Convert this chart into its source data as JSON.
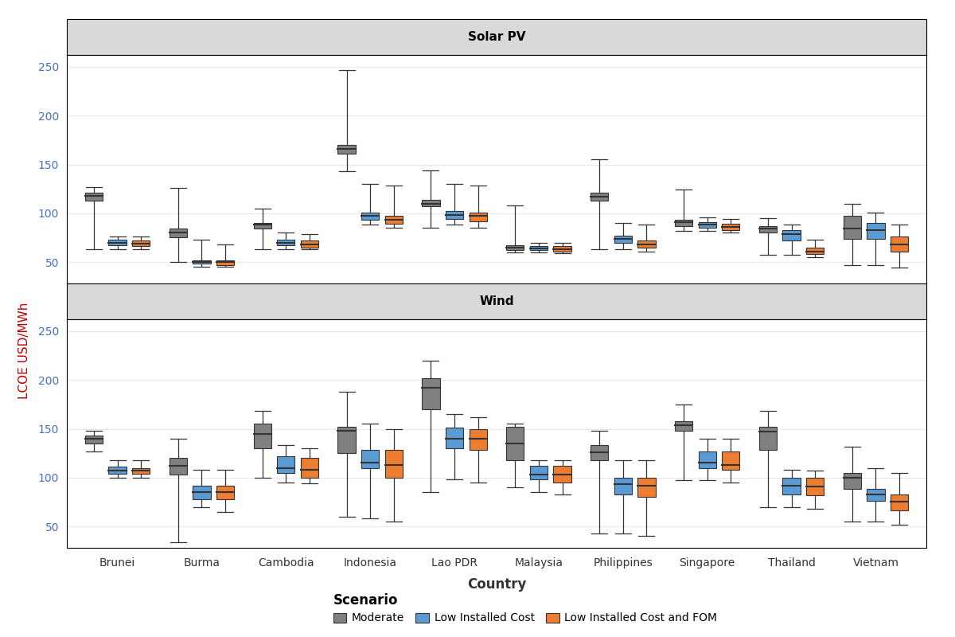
{
  "countries": [
    "Brunei",
    "Burma",
    "Cambodia",
    "Indonesia",
    "Lao PDR",
    "Malaysia",
    "Philippines",
    "Singapore",
    "Thailand",
    "Vietnam"
  ],
  "colors": {
    "moderate": "#808080",
    "low_cost": "#5B9BD5",
    "low_cost_fom": "#ED7D31"
  },
  "solar_pv": {
    "moderate": [
      {
        "whislo": 63,
        "q1": 113,
        "med": 118,
        "q3": 121,
        "whishi": 127
      },
      {
        "whislo": 50,
        "q1": 75,
        "med": 80,
        "q3": 84,
        "whishi": 126
      },
      {
        "whislo": 63,
        "q1": 84,
        "med": 88,
        "q3": 90,
        "whishi": 105
      },
      {
        "whislo": 143,
        "q1": 161,
        "med": 166,
        "q3": 170,
        "whishi": 247
      },
      {
        "whislo": 85,
        "q1": 107,
        "med": 110,
        "q3": 114,
        "whishi": 144
      },
      {
        "whislo": 60,
        "q1": 62,
        "med": 65,
        "q3": 67,
        "whishi": 108
      },
      {
        "whislo": 63,
        "q1": 113,
        "med": 117,
        "q3": 121,
        "whishi": 155
      },
      {
        "whislo": 82,
        "q1": 87,
        "med": 91,
        "q3": 93,
        "whishi": 124
      },
      {
        "whislo": 57,
        "q1": 80,
        "med": 84,
        "q3": 87,
        "whishi": 95
      },
      {
        "whislo": 47,
        "q1": 74,
        "med": 84,
        "q3": 97,
        "whishi": 110
      }
    ],
    "low_cost": [
      {
        "whislo": 63,
        "q1": 67,
        "med": 70,
        "q3": 73,
        "whishi": 76
      },
      {
        "whislo": 45,
        "q1": 48,
        "med": 50,
        "q3": 52,
        "whishi": 73
      },
      {
        "whislo": 63,
        "q1": 67,
        "med": 70,
        "q3": 73,
        "whishi": 80
      },
      {
        "whislo": 88,
        "q1": 93,
        "med": 97,
        "q3": 101,
        "whishi": 130
      },
      {
        "whislo": 88,
        "q1": 94,
        "med": 98,
        "q3": 102,
        "whishi": 130
      },
      {
        "whislo": 60,
        "q1": 62,
        "med": 64,
        "q3": 66,
        "whishi": 70
      },
      {
        "whislo": 63,
        "q1": 70,
        "med": 74,
        "q3": 77,
        "whishi": 90
      },
      {
        "whislo": 82,
        "q1": 85,
        "med": 88,
        "q3": 91,
        "whishi": 96
      },
      {
        "whislo": 57,
        "q1": 72,
        "med": 79,
        "q3": 83,
        "whishi": 88
      },
      {
        "whislo": 47,
        "q1": 74,
        "med": 83,
        "q3": 90,
        "whishi": 101
      }
    ],
    "low_cost_fom": [
      {
        "whislo": 63,
        "q1": 66,
        "med": 69,
        "q3": 72,
        "whishi": 76
      },
      {
        "whislo": 45,
        "q1": 47,
        "med": 50,
        "q3": 52,
        "whishi": 68
      },
      {
        "whislo": 63,
        "q1": 65,
        "med": 68,
        "q3": 72,
        "whishi": 79
      },
      {
        "whislo": 85,
        "q1": 89,
        "med": 93,
        "q3": 97,
        "whishi": 128
      },
      {
        "whislo": 85,
        "q1": 92,
        "med": 97,
        "q3": 101,
        "whishi": 128
      },
      {
        "whislo": 59,
        "q1": 61,
        "med": 63,
        "q3": 66,
        "whishi": 70
      },
      {
        "whislo": 61,
        "q1": 65,
        "med": 68,
        "q3": 72,
        "whishi": 88
      },
      {
        "whislo": 80,
        "q1": 83,
        "med": 86,
        "q3": 89,
        "whishi": 94
      },
      {
        "whislo": 55,
        "q1": 58,
        "med": 61,
        "q3": 65,
        "whishi": 73
      },
      {
        "whislo": 44,
        "q1": 61,
        "med": 68,
        "q3": 76,
        "whishi": 88
      }
    ]
  },
  "wind": {
    "moderate": [
      {
        "whislo": 127,
        "q1": 135,
        "med": 140,
        "q3": 143,
        "whishi": 148
      },
      {
        "whislo": 34,
        "q1": 103,
        "med": 112,
        "q3": 120,
        "whishi": 140
      },
      {
        "whislo": 100,
        "q1": 130,
        "med": 145,
        "q3": 155,
        "whishi": 168
      },
      {
        "whislo": 60,
        "q1": 125,
        "med": 148,
        "q3": 152,
        "whishi": 188
      },
      {
        "whislo": 85,
        "q1": 170,
        "med": 192,
        "q3": 202,
        "whishi": 220
      },
      {
        "whislo": 90,
        "q1": 118,
        "med": 135,
        "q3": 152,
        "whishi": 155
      },
      {
        "whislo": 43,
        "q1": 118,
        "med": 126,
        "q3": 133,
        "whishi": 148
      },
      {
        "whislo": 97,
        "q1": 148,
        "med": 154,
        "q3": 158,
        "whishi": 175
      },
      {
        "whislo": 70,
        "q1": 128,
        "med": 147,
        "q3": 152,
        "whishi": 168
      },
      {
        "whislo": 55,
        "q1": 88,
        "med": 100,
        "q3": 105,
        "whishi": 132
      }
    ],
    "low_cost": [
      {
        "whislo": 100,
        "q1": 104,
        "med": 107,
        "q3": 111,
        "whishi": 118
      },
      {
        "whislo": 70,
        "q1": 78,
        "med": 85,
        "q3": 92,
        "whishi": 108
      },
      {
        "whislo": 95,
        "q1": 105,
        "med": 110,
        "q3": 122,
        "whishi": 133
      },
      {
        "whislo": 58,
        "q1": 110,
        "med": 115,
        "q3": 128,
        "whishi": 155
      },
      {
        "whislo": 98,
        "q1": 130,
        "med": 140,
        "q3": 151,
        "whishi": 165
      },
      {
        "whislo": 85,
        "q1": 98,
        "med": 103,
        "q3": 112,
        "whishi": 118
      },
      {
        "whislo": 43,
        "q1": 83,
        "med": 93,
        "q3": 100,
        "whishi": 118
      },
      {
        "whislo": 97,
        "q1": 110,
        "med": 115,
        "q3": 127,
        "whishi": 140
      },
      {
        "whislo": 70,
        "q1": 83,
        "med": 92,
        "q3": 100,
        "whishi": 108
      },
      {
        "whislo": 55,
        "q1": 76,
        "med": 83,
        "q3": 88,
        "whishi": 110
      }
    ],
    "low_cost_fom": [
      {
        "whislo": 100,
        "q1": 104,
        "med": 107,
        "q3": 110,
        "whishi": 118
      },
      {
        "whislo": 65,
        "q1": 78,
        "med": 85,
        "q3": 92,
        "whishi": 108
      },
      {
        "whislo": 94,
        "q1": 100,
        "med": 108,
        "q3": 120,
        "whishi": 130
      },
      {
        "whislo": 55,
        "q1": 100,
        "med": 113,
        "q3": 128,
        "whishi": 150
      },
      {
        "whislo": 95,
        "q1": 128,
        "med": 140,
        "q3": 150,
        "whishi": 162
      },
      {
        "whislo": 83,
        "q1": 95,
        "med": 103,
        "q3": 112,
        "whishi": 118
      },
      {
        "whislo": 40,
        "q1": 80,
        "med": 92,
        "q3": 100,
        "whishi": 118
      },
      {
        "whislo": 95,
        "q1": 108,
        "med": 113,
        "q3": 127,
        "whishi": 140
      },
      {
        "whislo": 68,
        "q1": 82,
        "med": 91,
        "q3": 100,
        "whishi": 107
      },
      {
        "whislo": 52,
        "q1": 66,
        "med": 75,
        "q3": 83,
        "whishi": 105
      }
    ]
  },
  "ylim": [
    28,
    262
  ],
  "yticks": [
    50,
    100,
    150,
    200,
    250
  ],
  "ylabel": "LCOE USD/MWh",
  "xlabel": "Country",
  "title_solar": "Solar PV",
  "title_wind": "Wind",
  "legend_labels": [
    "Moderate",
    "Low Installed Cost",
    "Low Installed Cost and FOM"
  ],
  "bg_color": "#FFFFFF",
  "panel_header_color": "#D9D9D9",
  "grid_color": "#E8E8E8",
  "tick_color": "#4472C4",
  "ylabel_color": "#C00000"
}
